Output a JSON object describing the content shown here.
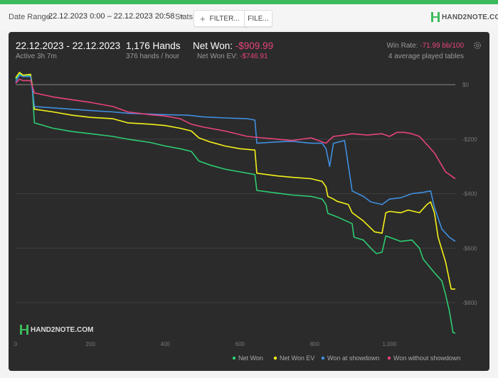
{
  "toolbar": {
    "date_range_label": "Date Range:",
    "date_range_value": "22.12.2023 0:00 – 22.12.2023 20:58",
    "stats_label": "Stats:",
    "filter_label": "FILTER...",
    "file_label": "FILE...",
    "brand": "HAND2NOTE.COM"
  },
  "summary": {
    "date": "22.12.2023 - 22.12.2023",
    "active": "Active 3h 7m",
    "hands": "1,176 Hands",
    "hands_per_hour": "376 hands / hour",
    "net_won_label": "Net Won: ",
    "net_won_value": "-$909.99",
    "net_won_ev_label": "Net Won  EV: ",
    "net_won_ev_value": "-$746.91",
    "win_rate_label": "Win Rate: ",
    "win_rate_value": "-71.99 bb/100",
    "tables": "4 average played tables"
  },
  "watermark": "HAND2NOTE.COM",
  "colors": {
    "accent": "#3dbb5c",
    "negative": "#e8437b",
    "net_won": "#2ecc71",
    "net_won_ev": "#f4f11a",
    "won_at_showdown": "#3f8fe0",
    "won_without_showdown": "#e8437b"
  },
  "chart_data": {
    "type": "line",
    "xlim": [
      0,
      1176
    ],
    "ylim": [
      -920,
      50
    ],
    "x_ticks": [
      0,
      200,
      400,
      600,
      800,
      1000
    ],
    "x_tick_labels": [
      "0",
      "200",
      "400",
      "600",
      "800",
      "1,000"
    ],
    "y_ticks": [
      0,
      -200,
      -400,
      -600,
      -800
    ],
    "y_tick_labels": [
      "$0",
      "-$200",
      "-$400",
      "-$600",
      "-$800"
    ],
    "grid": true,
    "legend_position": "bottom-right",
    "series": [
      {
        "name": "Net Won",
        "color": "#2ecc71",
        "points": [
          [
            0,
            20
          ],
          [
            10,
            40
          ],
          [
            20,
            30
          ],
          [
            40,
            35
          ],
          [
            45,
            -20
          ],
          [
            50,
            -140
          ],
          [
            100,
            -160
          ],
          [
            150,
            -172
          ],
          [
            200,
            -180
          ],
          [
            260,
            -190
          ],
          [
            300,
            -200
          ],
          [
            360,
            -212
          ],
          [
            400,
            -225
          ],
          [
            440,
            -235
          ],
          [
            470,
            -245
          ],
          [
            490,
            -280
          ],
          [
            520,
            -295
          ],
          [
            560,
            -310
          ],
          [
            600,
            -320
          ],
          [
            640,
            -330
          ],
          [
            645,
            -388
          ],
          [
            700,
            -398
          ],
          [
            740,
            -405
          ],
          [
            790,
            -410
          ],
          [
            820,
            -420
          ],
          [
            830,
            -440
          ],
          [
            835,
            -472
          ],
          [
            850,
            -480
          ],
          [
            860,
            -485
          ],
          [
            900,
            -510
          ],
          [
            905,
            -560
          ],
          [
            930,
            -570
          ],
          [
            950,
            -600
          ],
          [
            965,
            -620
          ],
          [
            980,
            -615
          ],
          [
            990,
            -555
          ],
          [
            1000,
            -560
          ],
          [
            1030,
            -575
          ],
          [
            1060,
            -570
          ],
          [
            1080,
            -600
          ],
          [
            1090,
            -640
          ],
          [
            1120,
            -690
          ],
          [
            1140,
            -720
          ],
          [
            1150,
            -770
          ],
          [
            1160,
            -830
          ],
          [
            1170,
            -910
          ],
          [
            1176,
            -912
          ]
        ]
      },
      {
        "name": "Net Won  EV",
        "color": "#f4f11a",
        "points": [
          [
            0,
            25
          ],
          [
            10,
            45
          ],
          [
            20,
            35
          ],
          [
            40,
            38
          ],
          [
            45,
            -10
          ],
          [
            50,
            -90
          ],
          [
            100,
            -100
          ],
          [
            150,
            -112
          ],
          [
            200,
            -120
          ],
          [
            260,
            -125
          ],
          [
            300,
            -140
          ],
          [
            360,
            -145
          ],
          [
            400,
            -150
          ],
          [
            440,
            -160
          ],
          [
            470,
            -170
          ],
          [
            490,
            -195
          ],
          [
            520,
            -210
          ],
          [
            560,
            -225
          ],
          [
            600,
            -235
          ],
          [
            640,
            -240
          ],
          [
            645,
            -325
          ],
          [
            700,
            -335
          ],
          [
            740,
            -340
          ],
          [
            790,
            -345
          ],
          [
            820,
            -355
          ],
          [
            830,
            -375
          ],
          [
            835,
            -410
          ],
          [
            850,
            -420
          ],
          [
            860,
            -428
          ],
          [
            890,
            -440
          ],
          [
            900,
            -470
          ],
          [
            930,
            -500
          ],
          [
            960,
            -540
          ],
          [
            980,
            -545
          ],
          [
            990,
            -470
          ],
          [
            1000,
            -465
          ],
          [
            1030,
            -470
          ],
          [
            1050,
            -460
          ],
          [
            1080,
            -470
          ],
          [
            1100,
            -440
          ],
          [
            1110,
            -430
          ],
          [
            1120,
            -470
          ],
          [
            1130,
            -560
          ],
          [
            1150,
            -650
          ],
          [
            1165,
            -750
          ],
          [
            1176,
            -750
          ]
        ]
      },
      {
        "name": "Won at showdown",
        "color": "#3f8fe0",
        "points": [
          [
            0,
            10
          ],
          [
            10,
            35
          ],
          [
            20,
            30
          ],
          [
            40,
            30
          ],
          [
            45,
            -20
          ],
          [
            50,
            -80
          ],
          [
            100,
            -85
          ],
          [
            150,
            -90
          ],
          [
            200,
            -95
          ],
          [
            260,
            -100
          ],
          [
            300,
            -105
          ],
          [
            360,
            -108
          ],
          [
            400,
            -110
          ],
          [
            460,
            -112
          ],
          [
            500,
            -118
          ],
          [
            560,
            -122
          ],
          [
            620,
            -125
          ],
          [
            640,
            -130
          ],
          [
            645,
            -215
          ],
          [
            700,
            -210
          ],
          [
            740,
            -208
          ],
          [
            790,
            -215
          ],
          [
            820,
            -215
          ],
          [
            830,
            -235
          ],
          [
            840,
            -300
          ],
          [
            850,
            -215
          ],
          [
            880,
            -205
          ],
          [
            900,
            -390
          ],
          [
            930,
            -410
          ],
          [
            950,
            -430
          ],
          [
            980,
            -440
          ],
          [
            1000,
            -420
          ],
          [
            1030,
            -415
          ],
          [
            1060,
            -400
          ],
          [
            1090,
            -395
          ],
          [
            1110,
            -390
          ],
          [
            1120,
            -450
          ],
          [
            1140,
            -530
          ],
          [
            1160,
            -560
          ],
          [
            1176,
            -575
          ]
        ]
      },
      {
        "name": "Won without showdown",
        "color": "#e8437b",
        "points": [
          [
            0,
            5
          ],
          [
            10,
            20
          ],
          [
            20,
            15
          ],
          [
            40,
            15
          ],
          [
            50,
            -30
          ],
          [
            100,
            -45
          ],
          [
            150,
            -55
          ],
          [
            200,
            -65
          ],
          [
            260,
            -80
          ],
          [
            300,
            -100
          ],
          [
            360,
            -110
          ],
          [
            400,
            -115
          ],
          [
            440,
            -125
          ],
          [
            470,
            -145
          ],
          [
            500,
            -155
          ],
          [
            560,
            -170
          ],
          [
            620,
            -190
          ],
          [
            660,
            -195
          ],
          [
            700,
            -200
          ],
          [
            740,
            -205
          ],
          [
            790,
            -195
          ],
          [
            820,
            -210
          ],
          [
            830,
            -215
          ],
          [
            850,
            -190
          ],
          [
            880,
            -185
          ],
          [
            900,
            -180
          ],
          [
            940,
            -185
          ],
          [
            980,
            -180
          ],
          [
            1000,
            -190
          ],
          [
            1020,
            -175
          ],
          [
            1040,
            -175
          ],
          [
            1060,
            -180
          ],
          [
            1080,
            -190
          ],
          [
            1100,
            -220
          ],
          [
            1120,
            -250
          ],
          [
            1150,
            -320
          ],
          [
            1176,
            -345
          ]
        ]
      }
    ],
    "legend": [
      "Net Won",
      "Net Won  EV",
      "Won at showdown",
      "Won without showdown"
    ]
  }
}
